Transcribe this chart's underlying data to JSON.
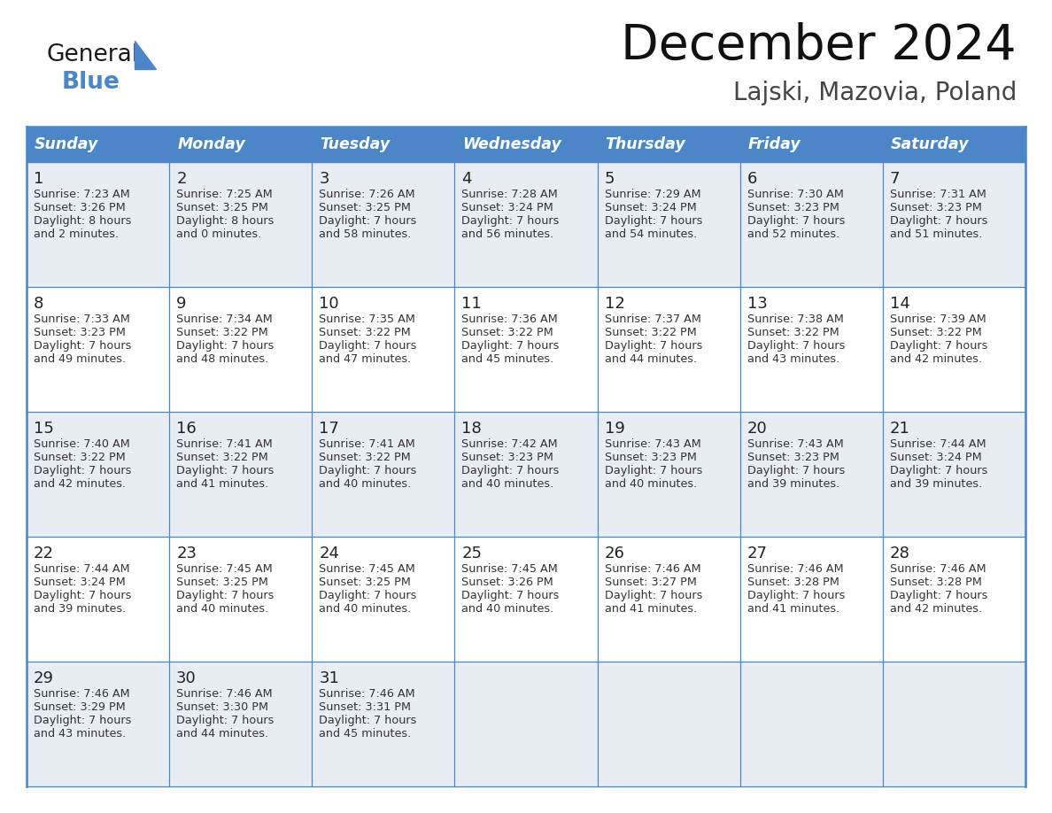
{
  "title": "December 2024",
  "subtitle": "Lajski, Mazovia, Poland",
  "header_color": "#4a86c8",
  "header_text_color": "#ffffff",
  "cell_bg_white": "#ffffff",
  "cell_bg_gray": "#e8edf4",
  "day_number_color": "#333333",
  "text_color": "#333333",
  "border_color": "#4a86c8",
  "days_of_week": [
    "Sunday",
    "Monday",
    "Tuesday",
    "Wednesday",
    "Thursday",
    "Friday",
    "Saturday"
  ],
  "weeks": [
    [
      {
        "day": "1",
        "sunrise": "7:23 AM",
        "sunset": "3:26 PM",
        "daylight1": "8 hours",
        "daylight2": "and 2 minutes."
      },
      {
        "day": "2",
        "sunrise": "7:25 AM",
        "sunset": "3:25 PM",
        "daylight1": "8 hours",
        "daylight2": "and 0 minutes."
      },
      {
        "day": "3",
        "sunrise": "7:26 AM",
        "sunset": "3:25 PM",
        "daylight1": "7 hours",
        "daylight2": "and 58 minutes."
      },
      {
        "day": "4",
        "sunrise": "7:28 AM",
        "sunset": "3:24 PM",
        "daylight1": "7 hours",
        "daylight2": "and 56 minutes."
      },
      {
        "day": "5",
        "sunrise": "7:29 AM",
        "sunset": "3:24 PM",
        "daylight1": "7 hours",
        "daylight2": "and 54 minutes."
      },
      {
        "day": "6",
        "sunrise": "7:30 AM",
        "sunset": "3:23 PM",
        "daylight1": "7 hours",
        "daylight2": "and 52 minutes."
      },
      {
        "day": "7",
        "sunrise": "7:31 AM",
        "sunset": "3:23 PM",
        "daylight1": "7 hours",
        "daylight2": "and 51 minutes."
      }
    ],
    [
      {
        "day": "8",
        "sunrise": "7:33 AM",
        "sunset": "3:23 PM",
        "daylight1": "7 hours",
        "daylight2": "and 49 minutes."
      },
      {
        "day": "9",
        "sunrise": "7:34 AM",
        "sunset": "3:22 PM",
        "daylight1": "7 hours",
        "daylight2": "and 48 minutes."
      },
      {
        "day": "10",
        "sunrise": "7:35 AM",
        "sunset": "3:22 PM",
        "daylight1": "7 hours",
        "daylight2": "and 47 minutes."
      },
      {
        "day": "11",
        "sunrise": "7:36 AM",
        "sunset": "3:22 PM",
        "daylight1": "7 hours",
        "daylight2": "and 45 minutes."
      },
      {
        "day": "12",
        "sunrise": "7:37 AM",
        "sunset": "3:22 PM",
        "daylight1": "7 hours",
        "daylight2": "and 44 minutes."
      },
      {
        "day": "13",
        "sunrise": "7:38 AM",
        "sunset": "3:22 PM",
        "daylight1": "7 hours",
        "daylight2": "and 43 minutes."
      },
      {
        "day": "14",
        "sunrise": "7:39 AM",
        "sunset": "3:22 PM",
        "daylight1": "7 hours",
        "daylight2": "and 42 minutes."
      }
    ],
    [
      {
        "day": "15",
        "sunrise": "7:40 AM",
        "sunset": "3:22 PM",
        "daylight1": "7 hours",
        "daylight2": "and 42 minutes."
      },
      {
        "day": "16",
        "sunrise": "7:41 AM",
        "sunset": "3:22 PM",
        "daylight1": "7 hours",
        "daylight2": "and 41 minutes."
      },
      {
        "day": "17",
        "sunrise": "7:41 AM",
        "sunset": "3:22 PM",
        "daylight1": "7 hours",
        "daylight2": "and 40 minutes."
      },
      {
        "day": "18",
        "sunrise": "7:42 AM",
        "sunset": "3:23 PM",
        "daylight1": "7 hours",
        "daylight2": "and 40 minutes."
      },
      {
        "day": "19",
        "sunrise": "7:43 AM",
        "sunset": "3:23 PM",
        "daylight1": "7 hours",
        "daylight2": "and 40 minutes."
      },
      {
        "day": "20",
        "sunrise": "7:43 AM",
        "sunset": "3:23 PM",
        "daylight1": "7 hours",
        "daylight2": "and 39 minutes."
      },
      {
        "day": "21",
        "sunrise": "7:44 AM",
        "sunset": "3:24 PM",
        "daylight1": "7 hours",
        "daylight2": "and 39 minutes."
      }
    ],
    [
      {
        "day": "22",
        "sunrise": "7:44 AM",
        "sunset": "3:24 PM",
        "daylight1": "7 hours",
        "daylight2": "and 39 minutes."
      },
      {
        "day": "23",
        "sunrise": "7:45 AM",
        "sunset": "3:25 PM",
        "daylight1": "7 hours",
        "daylight2": "and 40 minutes."
      },
      {
        "day": "24",
        "sunrise": "7:45 AM",
        "sunset": "3:25 PM",
        "daylight1": "7 hours",
        "daylight2": "and 40 minutes."
      },
      {
        "day": "25",
        "sunrise": "7:45 AM",
        "sunset": "3:26 PM",
        "daylight1": "7 hours",
        "daylight2": "and 40 minutes."
      },
      {
        "day": "26",
        "sunrise": "7:46 AM",
        "sunset": "3:27 PM",
        "daylight1": "7 hours",
        "daylight2": "and 41 minutes."
      },
      {
        "day": "27",
        "sunrise": "7:46 AM",
        "sunset": "3:28 PM",
        "daylight1": "7 hours",
        "daylight2": "and 41 minutes."
      },
      {
        "day": "28",
        "sunrise": "7:46 AM",
        "sunset": "3:28 PM",
        "daylight1": "7 hours",
        "daylight2": "and 42 minutes."
      }
    ],
    [
      {
        "day": "29",
        "sunrise": "7:46 AM",
        "sunset": "3:29 PM",
        "daylight1": "7 hours",
        "daylight2": "and 43 minutes."
      },
      {
        "day": "30",
        "sunrise": "7:46 AM",
        "sunset": "3:30 PM",
        "daylight1": "7 hours",
        "daylight2": "and 44 minutes."
      },
      {
        "day": "31",
        "sunrise": "7:46 AM",
        "sunset": "3:31 PM",
        "daylight1": "7 hours",
        "daylight2": "and 45 minutes."
      },
      null,
      null,
      null,
      null
    ]
  ]
}
